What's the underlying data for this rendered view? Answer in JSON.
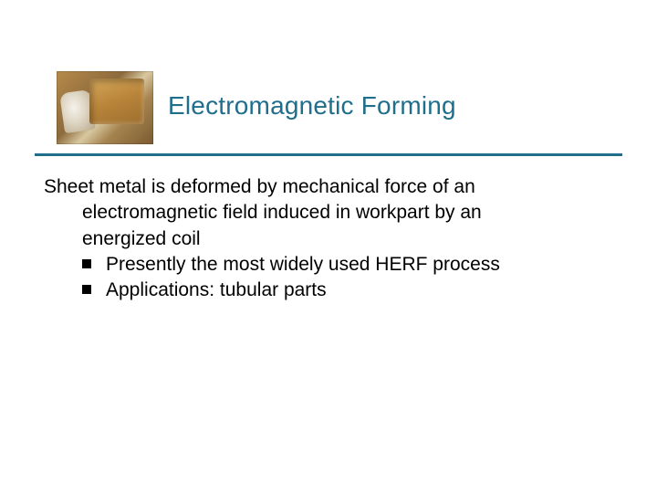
{
  "title": {
    "text": "Electromagnetic Forming",
    "color": "#1f6e8c",
    "fontsize": 28
  },
  "divider": {
    "color": "#1f6e8c",
    "thickness": 3
  },
  "body": {
    "lead_line1": "Sheet metal is deformed by mechanical force of an",
    "lead_line2": "electromagnetic field induced in workpart by an",
    "lead_line3": "energized coil",
    "bullets": [
      "Presently the most widely used HERF process",
      "Applications: tubular parts"
    ],
    "text_color": "#000000",
    "fontsize": 21,
    "bullet_color": "#000000"
  },
  "thumbnail": {
    "description": "machining-photo",
    "dominant_colors": [
      "#b78a4a",
      "#8c6a3c",
      "#d8c8a0",
      "#f5f2ea"
    ]
  },
  "background_color": "#ffffff"
}
